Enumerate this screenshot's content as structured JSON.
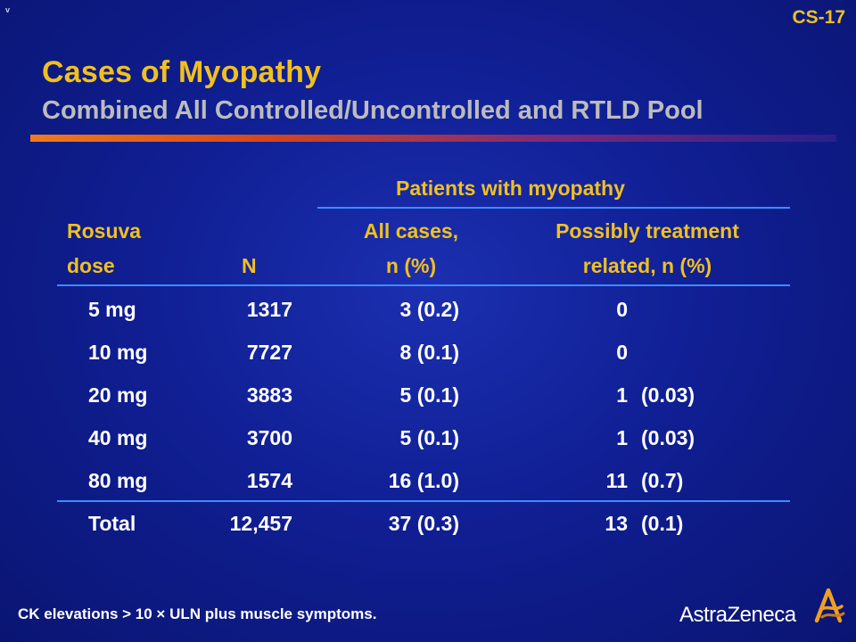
{
  "slide_number": "CS-17",
  "corner_mark": "v",
  "title": "Cases of Myopathy",
  "subtitle": "Combined All Controlled/Uncontrolled and RTLD Pool",
  "table": {
    "group_header": "Patients with myopathy",
    "headers": {
      "dose_line1": "Rosuva",
      "dose_line2": "dose",
      "n": "N",
      "all_line1": "All cases,",
      "all_line2": "n (%)",
      "possible_line1": "Possibly treatment",
      "possible_line2": "related, n (%)"
    },
    "rows": [
      {
        "dose": "5 mg",
        "n": "1317",
        "all": "3 (0.2)",
        "possible_n": "0",
        "possible_pct": ""
      },
      {
        "dose": "10 mg",
        "n": "7727",
        "all": "8 (0.1)",
        "possible_n": "0",
        "possible_pct": ""
      },
      {
        "dose": "20 mg",
        "n": "3883",
        "all": "5 (0.1)",
        "possible_n": "1",
        "possible_pct": "(0.03)"
      },
      {
        "dose": "40 mg",
        "n": "3700",
        "all": "5 (0.1)",
        "possible_n": "1",
        "possible_pct": "(0.03)"
      },
      {
        "dose": "80 mg",
        "n": "1574",
        "all": "16 (1.0)",
        "possible_n": "11",
        "possible_pct": "(0.7)"
      }
    ],
    "total": {
      "dose": "Total",
      "n": "12,457",
      "all": "37 (0.3)",
      "possible_n": "13",
      "possible_pct": "(0.1)"
    }
  },
  "footnote": "CK elevations > 10 × ULN plus muscle symptoms.",
  "logo_text": "AstraZeneca",
  "colors": {
    "background": "#101f94",
    "title": "#f0c020",
    "subtitle": "#bcbcbc",
    "rule": "#3d8cff"
  }
}
